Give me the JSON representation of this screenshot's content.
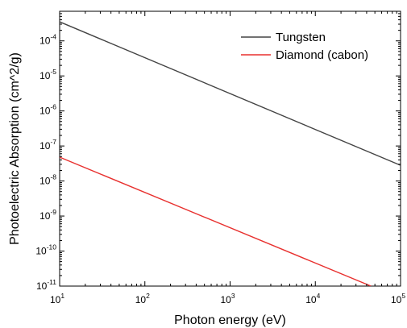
{
  "chart_data": {
    "type": "line",
    "title": "",
    "xlabel": "Photon energy (eV)",
    "ylabel": "Photoelectric Absorption (cm^2/g)",
    "x_scale": "log",
    "y_scale": "log",
    "xlim": [
      10,
      100000
    ],
    "ylim": [
      1e-11,
      0.0007
    ],
    "x_ticks": [
      {
        "base": "10",
        "exp": "1",
        "value": 10
      },
      {
        "base": "10",
        "exp": "2",
        "value": 100
      },
      {
        "base": "10",
        "exp": "3",
        "value": 1000
      },
      {
        "base": "10",
        "exp": "4",
        "value": 10000
      },
      {
        "base": "10",
        "exp": "5",
        "value": 100000
      }
    ],
    "y_ticks": [
      {
        "base": "10",
        "exp": "-11",
        "value": 1e-11
      },
      {
        "base": "10",
        "exp": "-10",
        "value": 1e-10
      },
      {
        "base": "10",
        "exp": "-9",
        "value": 1e-09
      },
      {
        "base": "10",
        "exp": "-8",
        "value": 1e-08
      },
      {
        "base": "10",
        "exp": "-7",
        "value": 1e-07
      },
      {
        "base": "10",
        "exp": "-6",
        "value": 1e-06
      },
      {
        "base": "10",
        "exp": "-5",
        "value": 1e-05
      },
      {
        "base": "10",
        "exp": "-4",
        "value": 0.0001
      }
    ],
    "grid": false,
    "legend_position": "top-right",
    "series": [
      {
        "name": "Tungsten",
        "color": "#444444",
        "x": [
          10,
          100000
        ],
        "y": [
          0.00035,
          2.8e-08
        ]
      },
      {
        "name": "Diamond (cabon)",
        "color": "#e8312f",
        "x": [
          10,
          45000
        ],
        "y": [
          4.8e-08,
          1e-11
        ]
      }
    ]
  }
}
